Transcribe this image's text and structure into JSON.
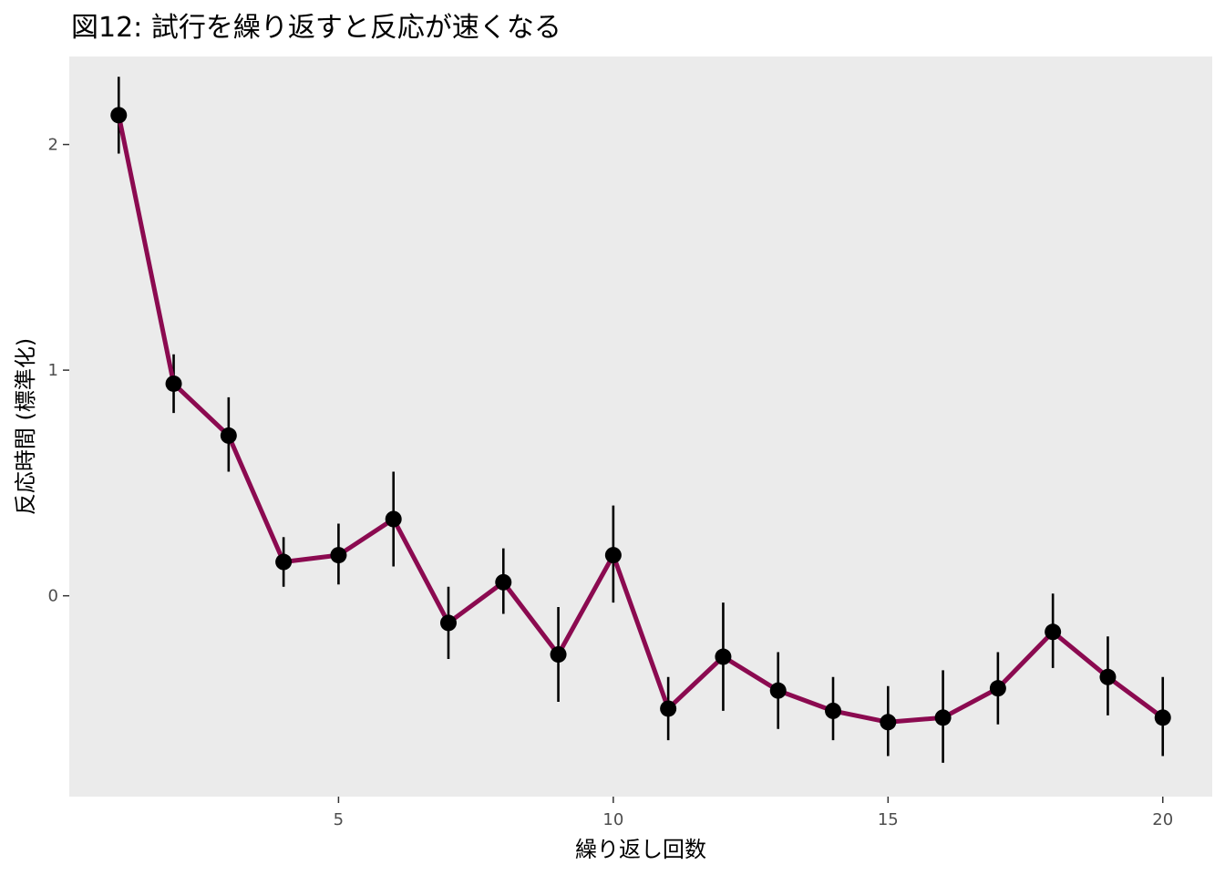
{
  "chart_data": {
    "type": "line",
    "title": "図12: 試行を繰り返すと反応が速くなる",
    "xlabel": "繰り返し回数",
    "ylabel": "反応時間 (標準化)",
    "xlim": [
      0.1,
      20.9
    ],
    "ylim": [
      -0.89,
      2.39
    ],
    "x_ticks": [
      5,
      10,
      15,
      20
    ],
    "y_ticks": [
      0,
      1,
      2
    ],
    "grid": false,
    "legend": "none",
    "colors": {
      "line": "#8b0a50",
      "point": "#000000",
      "errorbar": "#000000",
      "panel": "#ebebeb"
    },
    "series": [
      {
        "x": [
          1,
          2,
          3,
          4,
          5,
          6,
          7,
          8,
          9,
          10,
          11,
          12,
          13,
          14,
          15,
          16,
          17,
          18,
          19,
          20
        ],
        "y": [
          2.13,
          0.94,
          0.71,
          0.15,
          0.18,
          0.34,
          -0.12,
          0.06,
          -0.26,
          0.18,
          -0.5,
          -0.27,
          -0.42,
          -0.51,
          -0.56,
          -0.54,
          -0.41,
          -0.16,
          -0.36,
          -0.54
        ],
        "ymin": [
          1.96,
          0.81,
          0.55,
          0.04,
          0.05,
          0.13,
          -0.28,
          -0.08,
          -0.47,
          -0.03,
          -0.64,
          -0.51,
          -0.59,
          -0.64,
          -0.71,
          -0.74,
          -0.57,
          -0.32,
          -0.53,
          -0.71
        ],
        "ymax": [
          2.3,
          1.07,
          0.88,
          0.26,
          0.32,
          0.55,
          0.04,
          0.21,
          -0.05,
          0.4,
          -0.36,
          -0.03,
          -0.25,
          -0.36,
          -0.4,
          -0.33,
          -0.25,
          0.01,
          -0.18,
          -0.36
        ]
      }
    ]
  }
}
